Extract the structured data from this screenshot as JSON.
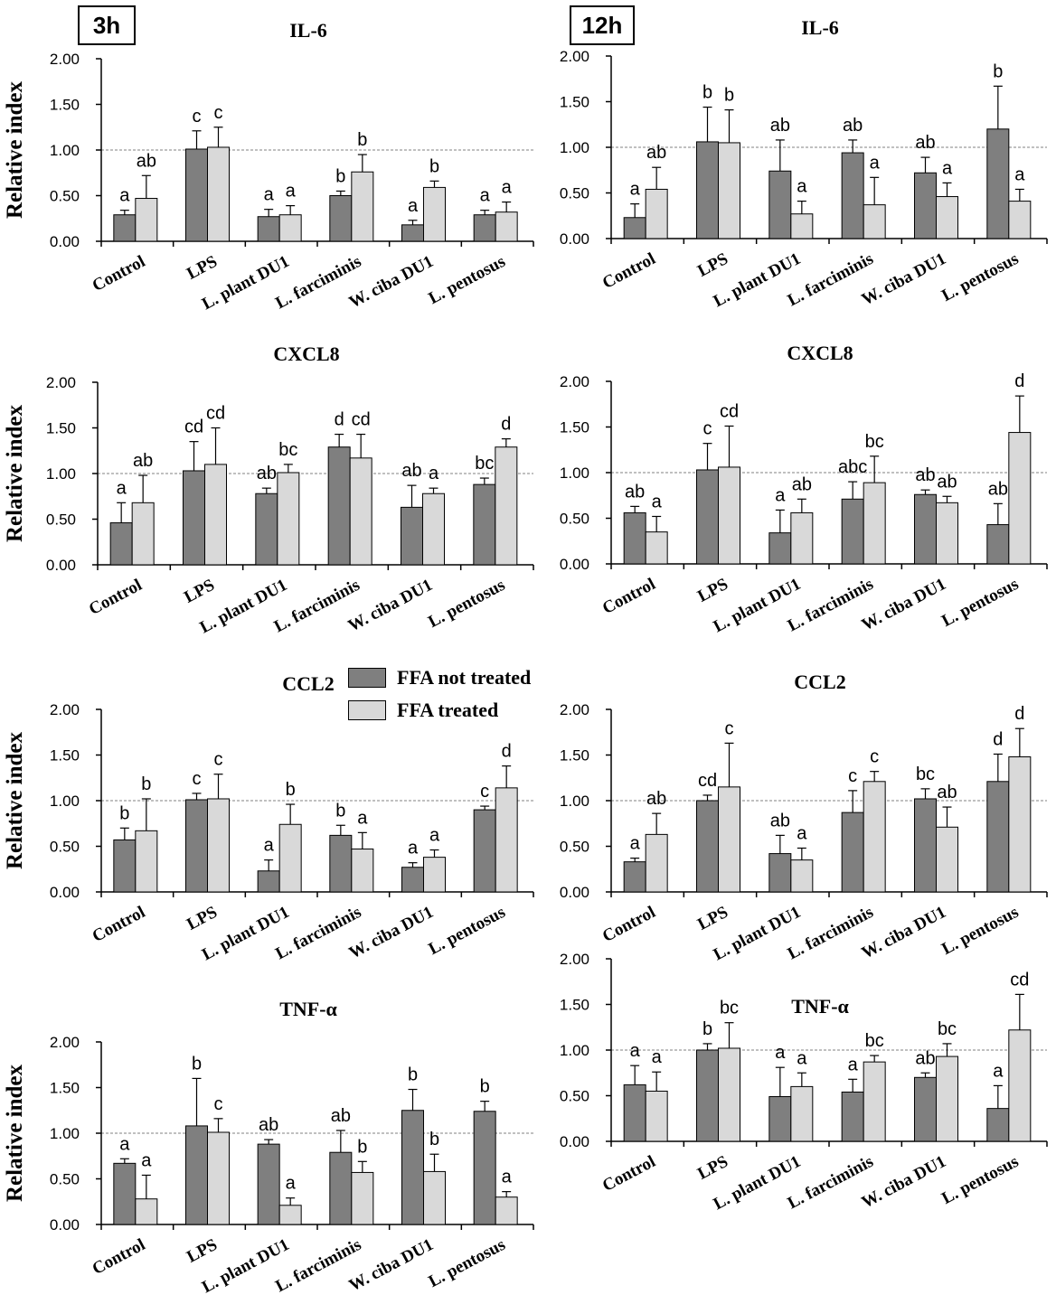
{
  "figure": {
    "time_labels": [
      "3h",
      "12h"
    ],
    "ylabel": "Relative index",
    "legend": [
      {
        "label": "FFA not treated",
        "color": "#7f7f7f"
      },
      {
        "label": "FFA treated",
        "color": "#d9d9d9"
      }
    ]
  },
  "chart_data": [
    {
      "type": "bar",
      "title": "IL-6",
      "time": "3h",
      "ylabel": "Relative index",
      "ylim": [
        0,
        2
      ],
      "yticks": [
        "0.00",
        "0.50",
        "1.00",
        "1.50",
        "2.00"
      ],
      "categories": [
        "Control",
        "LPS",
        "L. plant DU1",
        "L. farciminis",
        "W. ciba DU1",
        "L. pentosus"
      ],
      "series": [
        {
          "name": "FFA not treated",
          "values": [
            0.29,
            1.01,
            0.27,
            0.5,
            0.18,
            0.29
          ],
          "errors": [
            0.05,
            0.2,
            0.08,
            0.05,
            0.05,
            0.05
          ],
          "labels": [
            "a",
            "c",
            "a",
            "b",
            "a",
            "a"
          ]
        },
        {
          "name": "FFA treated",
          "values": [
            0.47,
            1.03,
            0.29,
            0.76,
            0.59,
            0.32
          ],
          "errors": [
            0.25,
            0.22,
            0.1,
            0.19,
            0.07,
            0.11
          ],
          "labels": [
            "ab",
            "c",
            "a",
            "b",
            "b",
            "a"
          ]
        }
      ]
    },
    {
      "type": "bar",
      "title": "IL-6",
      "time": "12h",
      "ylabel": "Relative index",
      "ylim": [
        0,
        2
      ],
      "yticks": [
        "0.00",
        "0.50",
        "1.00",
        "1.50",
        "2.00"
      ],
      "categories": [
        "Control",
        "LPS",
        "L. plant DU1",
        "L. farciminis",
        "W. ciba DU1",
        "L. pentosus"
      ],
      "series": [
        {
          "name": "FFA not treated",
          "values": [
            0.23,
            1.06,
            0.74,
            0.94,
            0.72,
            1.2
          ],
          "errors": [
            0.15,
            0.38,
            0.34,
            0.14,
            0.17,
            0.47
          ],
          "labels": [
            "a",
            "b",
            "ab",
            "ab",
            "ab",
            "b"
          ]
        },
        {
          "name": "FFA treated",
          "values": [
            0.54,
            1.05,
            0.27,
            0.37,
            0.46,
            0.41
          ],
          "errors": [
            0.24,
            0.36,
            0.14,
            0.3,
            0.15,
            0.13
          ],
          "labels": [
            "ab",
            "b",
            "a",
            "a",
            "a",
            "a"
          ]
        }
      ]
    },
    {
      "type": "bar",
      "title": "CXCL8",
      "time": "3h",
      "ylabel": "Relative index",
      "ylim": [
        0,
        2
      ],
      "yticks": [
        "0.00",
        "0.50",
        "1.00",
        "1.50",
        "2.00"
      ],
      "categories": [
        "Control",
        "LPS",
        "L. plant DU1",
        "L. farciminis",
        "W. ciba DU1",
        "L. pentosus"
      ],
      "series": [
        {
          "name": "FFA not treated",
          "values": [
            0.46,
            1.03,
            0.78,
            1.29,
            0.63,
            0.88
          ],
          "errors": [
            0.22,
            0.32,
            0.06,
            0.14,
            0.24,
            0.07
          ],
          "labels": [
            "a",
            "cd",
            "ab",
            "d",
            "ab",
            "bc"
          ]
        },
        {
          "name": "FFA treated",
          "values": [
            0.68,
            1.1,
            1.01,
            1.17,
            0.78,
            1.29
          ],
          "errors": [
            0.3,
            0.4,
            0.09,
            0.26,
            0.06,
            0.09
          ],
          "labels": [
            "ab",
            "cd",
            "bc",
            "cd",
            "a",
            "d"
          ]
        }
      ]
    },
    {
      "type": "bar",
      "title": "CXCL8",
      "time": "12h",
      "ylabel": "Relative index",
      "ylim": [
        0,
        2
      ],
      "yticks": [
        "0.00",
        "0.50",
        "1.00",
        "1.50",
        "2.00"
      ],
      "categories": [
        "Control",
        "LPS",
        "L. plant DU1",
        "L. farciminis",
        "W. ciba DU1",
        "L. pentosus"
      ],
      "series": [
        {
          "name": "FFA not treated",
          "values": [
            0.56,
            1.03,
            0.34,
            0.71,
            0.76,
            0.43
          ],
          "errors": [
            0.07,
            0.29,
            0.25,
            0.19,
            0.05,
            0.23
          ],
          "labels": [
            "ab",
            "c",
            "a",
            "abc",
            "ab",
            "ab"
          ]
        },
        {
          "name": "FFA treated",
          "values": [
            0.35,
            1.06,
            0.56,
            0.89,
            0.67,
            1.44
          ],
          "errors": [
            0.17,
            0.45,
            0.15,
            0.29,
            0.07,
            0.4
          ],
          "labels": [
            "a",
            "cd",
            "ab",
            "bc",
            "ab",
            "d"
          ]
        }
      ]
    },
    {
      "type": "bar",
      "title": "CCL2",
      "time": "3h",
      "ylabel": "Relative index",
      "ylim": [
        0,
        2
      ],
      "yticks": [
        "0.00",
        "0.50",
        "1.00",
        "1.50",
        "2.00"
      ],
      "categories": [
        "Control",
        "LPS",
        "L. plant DU1",
        "L. farciminis",
        "W. ciba DU1",
        "L. pentosus"
      ],
      "series": [
        {
          "name": "FFA not treated",
          "values": [
            0.57,
            1.01,
            0.23,
            0.62,
            0.27,
            0.9
          ],
          "errors": [
            0.13,
            0.07,
            0.12,
            0.11,
            0.05,
            0.04
          ],
          "labels": [
            "b",
            "c",
            "a",
            "b",
            "a",
            "c"
          ]
        },
        {
          "name": "FFA treated",
          "values": [
            0.67,
            1.02,
            0.74,
            0.47,
            0.38,
            1.14
          ],
          "errors": [
            0.35,
            0.27,
            0.22,
            0.18,
            0.08,
            0.24
          ],
          "labels": [
            "b",
            "c",
            "b",
            "a",
            "a",
            "d"
          ]
        }
      ]
    },
    {
      "type": "bar",
      "title": "CCL2",
      "time": "12h",
      "ylabel": "Relative index",
      "ylim": [
        0,
        2
      ],
      "yticks": [
        "0.00",
        "0.50",
        "1.00",
        "1.50",
        "2.00"
      ],
      "categories": [
        "Control",
        "LPS",
        "L. plant DU1",
        "L. farciminis",
        "W. ciba DU1",
        "L. pentosus"
      ],
      "series": [
        {
          "name": "FFA not treated",
          "values": [
            0.33,
            1.0,
            0.42,
            0.87,
            1.02,
            1.21
          ],
          "errors": [
            0.04,
            0.06,
            0.2,
            0.24,
            0.11,
            0.3
          ],
          "labels": [
            "a",
            "cd",
            "ab",
            "c",
            "bc",
            "d"
          ]
        },
        {
          "name": "FFA treated",
          "values": [
            0.63,
            1.15,
            0.35,
            1.21,
            0.71,
            1.48
          ],
          "errors": [
            0.23,
            0.48,
            0.13,
            0.11,
            0.22,
            0.31
          ],
          "labels": [
            "ab",
            "c",
            "a",
            "c",
            "ab",
            "d"
          ]
        }
      ]
    },
    {
      "type": "bar",
      "title": "TNF-α",
      "time": "3h",
      "ylabel": "Relative index",
      "ylim": [
        0,
        2
      ],
      "yticks": [
        "0.00",
        "0.50",
        "1.00",
        "1.50",
        "2.00"
      ],
      "categories": [
        "Control",
        "LPS",
        "L. plant DU1",
        "L. farciminis",
        "W. ciba DU1",
        "L. pentosus"
      ],
      "series": [
        {
          "name": "FFA not treated",
          "values": [
            0.67,
            1.08,
            0.88,
            0.79,
            1.25,
            1.24
          ],
          "errors": [
            0.05,
            0.52,
            0.05,
            0.24,
            0.23,
            0.11
          ],
          "labels": [
            "a",
            "b",
            "ab",
            "ab",
            "b",
            "b"
          ]
        },
        {
          "name": "FFA treated",
          "values": [
            0.28,
            1.01,
            0.21,
            0.57,
            0.58,
            0.3
          ],
          "errors": [
            0.26,
            0.15,
            0.08,
            0.12,
            0.19,
            0.06
          ],
          "labels": [
            "a",
            "c",
            "a",
            "b",
            "b",
            "a"
          ]
        }
      ]
    },
    {
      "type": "bar",
      "title": "TNF-α",
      "time": "12h",
      "ylabel": "Relative index",
      "ylim": [
        0,
        2
      ],
      "yticks": [
        "0.00",
        "0.50",
        "1.00",
        "1.50",
        "2.00"
      ],
      "categories": [
        "Control",
        "LPS",
        "L. plant DU1",
        "L. farciminis",
        "W. ciba DU1",
        "L. pentosus"
      ],
      "series": [
        {
          "name": "FFA not treated",
          "values": [
            0.62,
            1.0,
            0.49,
            0.54,
            0.7,
            0.36
          ],
          "errors": [
            0.21,
            0.07,
            0.32,
            0.14,
            0.05,
            0.25
          ],
          "labels": [
            "a",
            "b",
            "a",
            "a",
            "ab",
            "a"
          ]
        },
        {
          "name": "FFA treated",
          "values": [
            0.55,
            1.02,
            0.6,
            0.87,
            0.93,
            1.22
          ],
          "errors": [
            0.21,
            0.28,
            0.15,
            0.07,
            0.14,
            0.39
          ],
          "labels": [
            "a",
            "bc",
            "a",
            "bc",
            "bc",
            "cd"
          ]
        }
      ]
    }
  ]
}
